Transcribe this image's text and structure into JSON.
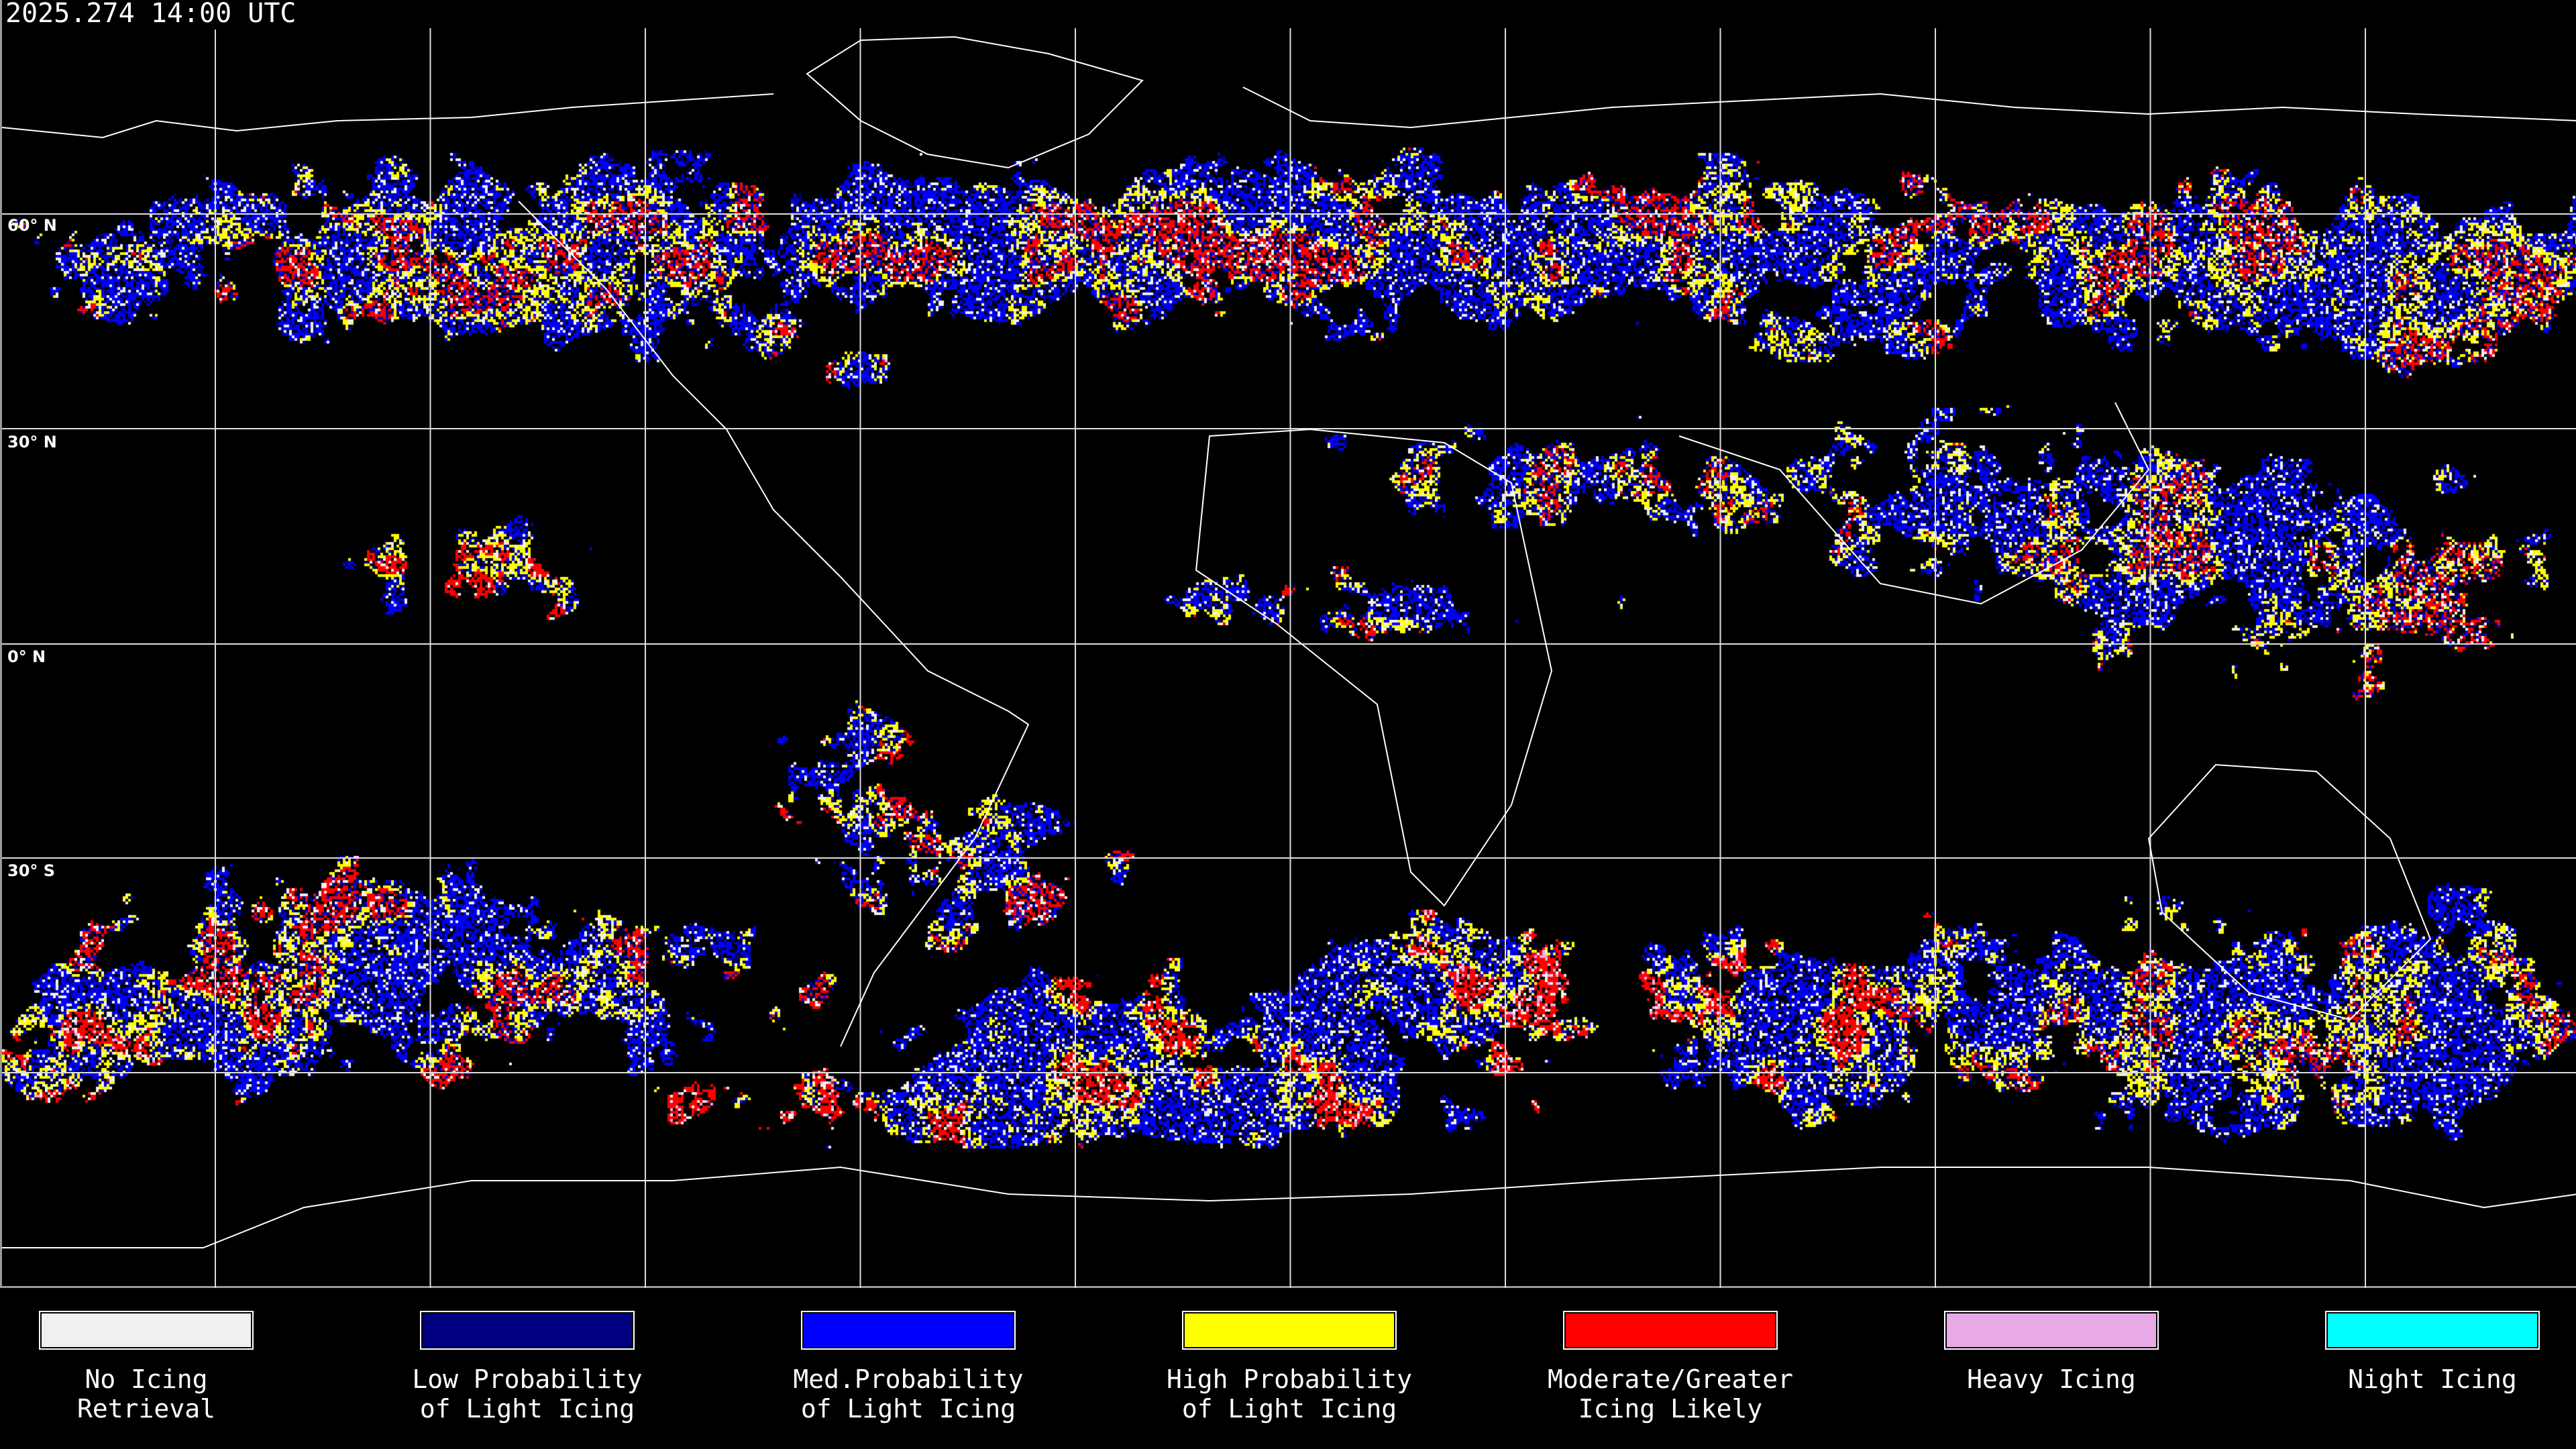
{
  "header": {
    "timestamp": "2025.274 14:00 UTC"
  },
  "map": {
    "projection": "equirectangular global",
    "grid_spacing_degrees": 30,
    "latitude_labels": [
      "60° N",
      "30° N",
      "0° N",
      "30° S"
    ],
    "coastline_color": "#ffffff",
    "gridline_color": "#ffffff",
    "background_color": "#000000"
  },
  "legend": {
    "items": [
      {
        "label": "No Icing\nRetrieval",
        "color": "#f0f0f0"
      },
      {
        "label": "Low Probability\nof Light Icing",
        "color": "#000080"
      },
      {
        "label": "Med.Probability\nof Light Icing",
        "color": "#0000ff"
      },
      {
        "label": "High Probability\nof Light Icing",
        "color": "#ffff00"
      },
      {
        "label": "Moderate/Greater\nIcing Likely",
        "color": "#ff0000"
      },
      {
        "label": "Heavy Icing",
        "color": "#e8aae6"
      },
      {
        "label": "Night Icing",
        "color": "#00ffff"
      }
    ]
  }
}
